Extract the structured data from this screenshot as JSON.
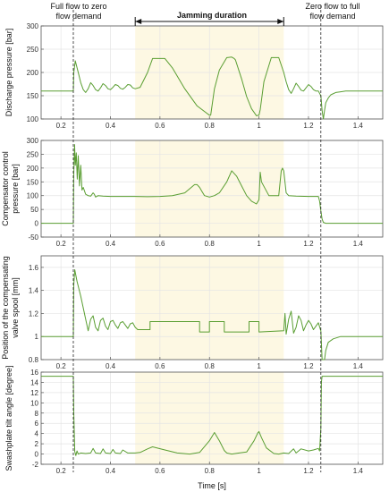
{
  "annotations": {
    "left_event": [
      "Full flow to zero",
      "flow demand"
    ],
    "right_event": [
      "Zero flow to full",
      "flow demand"
    ],
    "jamming": "Jamming duration"
  },
  "shared_x": {
    "label": "Time [s]",
    "lim": [
      0.12,
      1.5
    ],
    "ticks": [
      0.2,
      0.4,
      0.6,
      0.8,
      1.0,
      1.2,
      1.4
    ],
    "tick_labels": [
      "0.2",
      "0.4",
      "0.6",
      "0.8",
      "1",
      "1.2",
      "1.4"
    ],
    "event_lines": [
      0.25,
      1.25
    ],
    "jamming_span": [
      0.5,
      1.1
    ]
  },
  "colors": {
    "series": "#5a9e32",
    "jamming_fill": "#fdf8e3",
    "grid": "#e4e4e4",
    "event_line": "#222222"
  },
  "chart_data": [
    {
      "type": "line",
      "ylabel": "Discharge pressure [bar]",
      "ylim": [
        100,
        300
      ],
      "yticks": [
        100,
        150,
        200,
        250,
        300
      ],
      "grid": true,
      "series": [
        {
          "x": [
            0.12,
            0.25,
            0.252,
            0.258,
            0.27,
            0.28,
            0.29,
            0.3,
            0.31,
            0.32,
            0.33,
            0.34,
            0.35,
            0.36,
            0.37,
            0.38,
            0.39,
            0.4,
            0.41,
            0.42,
            0.43,
            0.44,
            0.45,
            0.46,
            0.47,
            0.48,
            0.49,
            0.5,
            0.52,
            0.55,
            0.57,
            0.62,
            0.65,
            0.7,
            0.75,
            0.8,
            0.805,
            0.82,
            0.84,
            0.87,
            0.89,
            0.9,
            0.905,
            0.93,
            0.95,
            0.97,
            0.99,
            1.0,
            1.005,
            1.02,
            1.05,
            1.08,
            1.1,
            1.11,
            1.12,
            1.13,
            1.14,
            1.15,
            1.16,
            1.17,
            1.18,
            1.19,
            1.2,
            1.21,
            1.22,
            1.23,
            1.24,
            1.25,
            1.255,
            1.26,
            1.265,
            1.27,
            1.28,
            1.29,
            1.31,
            1.35,
            1.5
          ],
          "y": [
            160,
            160,
            200,
            225,
            200,
            178,
            163,
            157,
            165,
            178,
            172,
            163,
            160,
            167,
            176,
            172,
            165,
            163,
            168,
            174,
            172,
            166,
            164,
            168,
            174,
            173,
            167,
            165,
            168,
            200,
            230,
            230,
            210,
            165,
            128,
            108,
            108,
            165,
            205,
            232,
            233,
            230,
            227,
            186,
            148,
            122,
            107,
            108,
            120,
            180,
            232,
            232,
            200,
            180,
            163,
            155,
            165,
            177,
            170,
            162,
            160,
            167,
            174,
            170,
            163,
            160,
            160,
            150,
            118,
            95,
            118,
            135,
            145,
            152,
            157,
            160,
            160
          ]
        }
      ]
    },
    {
      "type": "line",
      "ylabel": "Compensator control pressure [bar]",
      "ylim": [
        -50,
        300
      ],
      "yticks": [
        -50,
        0,
        50,
        100,
        150,
        200,
        250,
        300
      ],
      "grid": true,
      "series": [
        {
          "x": [
            0.12,
            0.25,
            0.252,
            0.255,
            0.258,
            0.262,
            0.266,
            0.27,
            0.275,
            0.28,
            0.285,
            0.29,
            0.3,
            0.31,
            0.32,
            0.33,
            0.335,
            0.34,
            0.35,
            0.37,
            0.4,
            0.45,
            0.5,
            0.55,
            0.6,
            0.65,
            0.7,
            0.72,
            0.74,
            0.75,
            0.76,
            0.77,
            0.78,
            0.8,
            0.82,
            0.84,
            0.87,
            0.89,
            0.91,
            0.93,
            0.95,
            0.97,
            0.99,
            1.0,
            1.005,
            1.01,
            1.04,
            1.08,
            1.09,
            1.095,
            1.1,
            1.11,
            1.12,
            1.15,
            1.2,
            1.24,
            1.245,
            1.25,
            1.255,
            1.26,
            1.27,
            1.5
          ],
          "y": [
            0,
            0,
            180,
            285,
            210,
            255,
            160,
            245,
            135,
            210,
            120,
            130,
            105,
            100,
            98,
            110,
            105,
            95,
            100,
            98,
            97,
            97,
            97,
            96,
            97,
            100,
            110,
            125,
            140,
            140,
            130,
            115,
            100,
            95,
            100,
            110,
            150,
            190,
            170,
            135,
            100,
            80,
            70,
            85,
            185,
            150,
            100,
            100,
            190,
            200,
            190,
            110,
            100,
            98,
            97,
            97,
            80,
            45,
            15,
            3,
            0,
            0
          ]
        }
      ]
    },
    {
      "type": "line",
      "ylabel": "Position of the compensating valve spool [mm]",
      "ylim": [
        0.8,
        1.7
      ],
      "yticks": [
        0.8,
        1.0,
        1.2,
        1.4,
        1.6
      ],
      "grid": true,
      "series": [
        {
          "x": [
            0.12,
            0.25,
            0.252,
            0.256,
            0.265,
            0.28,
            0.3,
            0.31,
            0.32,
            0.33,
            0.34,
            0.35,
            0.36,
            0.37,
            0.38,
            0.39,
            0.4,
            0.41,
            0.42,
            0.43,
            0.44,
            0.45,
            0.46,
            0.47,
            0.48,
            0.49,
            0.5,
            0.51,
            0.52,
            0.52,
            0.56,
            0.56,
            0.76,
            0.76,
            0.8,
            0.8,
            0.86,
            0.86,
            0.96,
            0.96,
            1.0,
            1.0,
            1.1,
            1.105,
            1.11,
            1.12,
            1.13,
            1.14,
            1.15,
            1.16,
            1.17,
            1.18,
            1.19,
            1.2,
            1.21,
            1.22,
            1.23,
            1.24,
            1.25,
            1.255,
            1.26,
            1.265,
            1.27,
            1.28,
            1.3,
            1.33,
            1.5
          ],
          "y": [
            1.0,
            1.0,
            1.45,
            1.58,
            1.48,
            1.35,
            1.15,
            1.05,
            1.15,
            1.18,
            1.08,
            1.05,
            1.14,
            1.16,
            1.09,
            1.06,
            1.13,
            1.14,
            1.1,
            1.07,
            1.12,
            1.13,
            1.1,
            1.07,
            1.11,
            1.12,
            1.08,
            1.06,
            1.06,
            1.06,
            1.06,
            1.13,
            1.13,
            1.04,
            1.04,
            1.13,
            1.13,
            1.04,
            1.04,
            1.13,
            1.13,
            1.04,
            1.05,
            1.2,
            1.02,
            1.15,
            1.22,
            1.03,
            1.08,
            1.18,
            1.14,
            1.05,
            1.1,
            1.14,
            1.11,
            1.06,
            1.09,
            1.12,
            1.05,
            0.72,
            0.49,
            0.75,
            0.88,
            0.95,
            0.98,
            1.0,
            1.0
          ]
        }
      ]
    },
    {
      "type": "line",
      "ylabel": "Swashplate tilt angle [degree]",
      "ylim": [
        -2,
        16
      ],
      "yticks": [
        -2,
        0,
        2,
        4,
        6,
        8,
        10,
        12,
        14,
        16
      ],
      "grid": true,
      "series": [
        {
          "x": [
            0.12,
            0.25,
            0.252,
            0.256,
            0.26,
            0.265,
            0.27,
            0.28,
            0.3,
            0.32,
            0.33,
            0.34,
            0.36,
            0.37,
            0.38,
            0.4,
            0.41,
            0.42,
            0.44,
            0.45,
            0.47,
            0.5,
            0.52,
            0.55,
            0.57,
            0.62,
            0.67,
            0.72,
            0.76,
            0.8,
            0.82,
            0.84,
            0.86,
            0.87,
            0.89,
            0.92,
            0.95,
            0.98,
            0.995,
            1.0,
            1.01,
            1.03,
            1.06,
            1.08,
            1.1,
            1.12,
            1.14,
            1.15,
            1.17,
            1.2,
            1.22,
            1.24,
            1.245,
            1.25,
            1.252,
            1.255,
            1.5
          ],
          "y": [
            15.2,
            15.2,
            8.0,
            0.5,
            -0.3,
            0.6,
            0.0,
            0.2,
            0.1,
            0.2,
            1.1,
            0.2,
            0.1,
            1.0,
            0.2,
            0.1,
            0.9,
            0.2,
            0.1,
            0.8,
            0.2,
            0.2,
            0.3,
            1.0,
            1.4,
            0.8,
            0.2,
            0.0,
            0.3,
            2.6,
            4.2,
            2.6,
            0.7,
            0.2,
            0.0,
            0.2,
            0.4,
            2.6,
            4.1,
            4.4,
            3.2,
            1.2,
            0.1,
            0.0,
            0.2,
            0.1,
            1.0,
            0.2,
            1.0,
            0.6,
            0.8,
            1.1,
            0.6,
            5.0,
            14.0,
            15.2,
            15.2
          ]
        }
      ]
    }
  ]
}
